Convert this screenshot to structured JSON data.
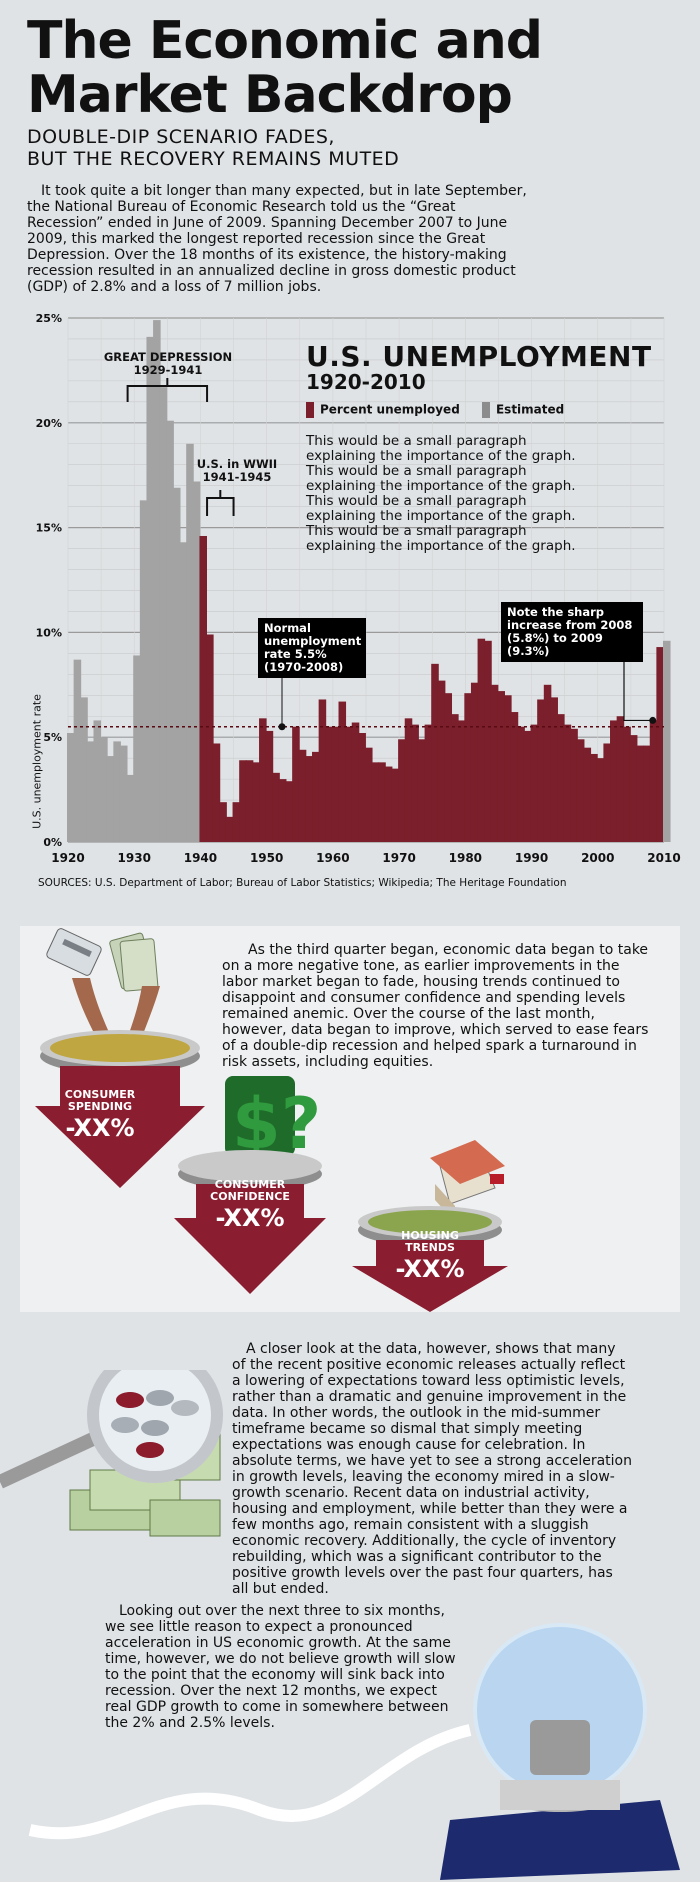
{
  "header": {
    "title": "The Economic and Market Backdrop",
    "subtitle_line1": "DOUBLE-DIP SCENARIO FADES,",
    "subtitle_line2": "BUT THE RECOVERY REMAINS MUTED",
    "intro": "It took quite a bit longer than many expected, but in late September, the National Bureau of Economic Research told us the “Great Recession” ended in June of 2009. Spanning December 2007 to June 2009, this marked the longest reported recession since the Great Depression. Over the 18 months of its existence, the history-making recession resulted in an annualized decline in gross domestic product (GDP) of 2.8% and a loss of 7 million jobs."
  },
  "chart": {
    "title": "U.S. UNEMPLOYMENT",
    "subtitle": "1920-2010",
    "legend_percent": "Percent unemployed",
    "legend_estimated": "Estimated",
    "note": "This would be a small paragraph explaining the importance of the graph. This would be a small paragraph explaining the importance of the graph. This would be a small paragraph explaining the importance of the graph. This would be a small paragraph explaining the importance of the graph.",
    "ann_depression_1": "GREAT DEPRESSION",
    "ann_depression_2": "1929-1941",
    "ann_ww2_1": "U.S. in WWII",
    "ann_ww2_2": "1941-1945",
    "callout_normal": "Normal unemployment rate 5.5% (1970-2008)",
    "callout_sharp": "Note the sharp increase from 2008 (5.8%) to 2009 (9.3%)",
    "sources": "SOURCES: U.S. Department of Labor; Bureau of Labor Statistics; Wikipedia; The Heritage Foundation",
    "colors": {
      "estimated": "#a3a3a3",
      "actual": "#7a1f2b",
      "average": "#5a0a12"
    }
  },
  "chart_data": {
    "type": "bar",
    "title": "U.S. UNEMPLOYMENT",
    "subtitle": "1920-2010",
    "xlabel": "",
    "ylabel": "U.S. unemployment rate",
    "ylim": [
      0,
      25
    ],
    "xlim": [
      1920,
      2010
    ],
    "yticks": [
      "0%",
      "5%",
      "10%",
      "15%",
      "20%",
      "25%"
    ],
    "xticks": [
      "1920",
      "1930",
      "1940",
      "1950",
      "1960",
      "1970",
      "1980",
      "1990",
      "2000",
      "2010"
    ],
    "average_line": 5.5,
    "series": [
      {
        "name": "Estimated",
        "x": [
          1920,
          1921,
          1922,
          1923,
          1924,
          1925,
          1926,
          1927,
          1928,
          1929,
          1930,
          1931,
          1932,
          1933,
          1934,
          1935,
          1936,
          1937,
          1938,
          1939
        ],
        "values": [
          5.2,
          8.7,
          6.9,
          4.8,
          5.8,
          5.0,
          4.1,
          4.8,
          4.6,
          3.2,
          8.9,
          16.3,
          24.1,
          24.9,
          21.7,
          20.1,
          16.9,
          14.3,
          19.0,
          17.2
        ]
      },
      {
        "name": "Percent unemployed",
        "x": [
          1940,
          1941,
          1942,
          1943,
          1944,
          1945,
          1946,
          1947,
          1948,
          1949,
          1950,
          1951,
          1952,
          1953,
          1954,
          1955,
          1956,
          1957,
          1958,
          1959,
          1960,
          1961,
          1962,
          1963,
          1964,
          1965,
          1966,
          1967,
          1968,
          1969,
          1970,
          1971,
          1972,
          1973,
          1974,
          1975,
          1976,
          1977,
          1978,
          1979,
          1980,
          1981,
          1982,
          1983,
          1984,
          1985,
          1986,
          1987,
          1988,
          1989,
          1990,
          1991,
          1992,
          1993,
          1994,
          1995,
          1996,
          1997,
          1998,
          1999,
          2000,
          2001,
          2002,
          2003,
          2004,
          2005,
          2006,
          2007,
          2008,
          2009
        ],
        "values": [
          14.6,
          9.9,
          4.7,
          1.9,
          1.2,
          1.9,
          3.9,
          3.9,
          3.8,
          5.9,
          5.3,
          3.3,
          3.0,
          2.9,
          5.5,
          4.4,
          4.1,
          4.3,
          6.8,
          5.5,
          5.5,
          6.7,
          5.5,
          5.7,
          5.2,
          4.5,
          3.8,
          3.8,
          3.6,
          3.5,
          4.9,
          5.9,
          5.6,
          4.9,
          5.6,
          8.5,
          7.7,
          7.1,
          6.1,
          5.8,
          7.1,
          7.6,
          9.7,
          9.6,
          7.5,
          7.2,
          7.0,
          6.2,
          5.5,
          5.3,
          5.6,
          6.8,
          7.5,
          6.9,
          6.1,
          5.6,
          5.4,
          4.9,
          4.5,
          4.2,
          4.0,
          4.7,
          5.8,
          6.0,
          5.5,
          5.1,
          4.6,
          4.6,
          5.8,
          9.3
        ]
      },
      {
        "name": "Estimated",
        "x": [
          2010
        ],
        "values": [
          9.6
        ]
      }
    ],
    "annotations": [
      "GREAT DEPRESSION 1929-1941",
      "U.S. in WWII 1941-1945",
      "Normal unemployment rate 5.5% (1970-2008)",
      "Note the sharp increase from 2008 (5.8%) to 2009 (9.3%)"
    ]
  },
  "section2": {
    "paragraph": "As the third quarter began, economic data began to take on a more negative tone, as earlier improvements in the labor market began to fade, housing trends continued to disappoint and consumer confidence and spending levels remained anemic. Over the course of the last month, however, data began to improve, which served to ease fears of a double-dip recession and helped spark a turnaround in risk assets, including equities.",
    "spending_label_1": "CONSUMER",
    "spending_label_2": "SPENDING",
    "spending_value": "-XX%",
    "confidence_label_1": "CONSUMER",
    "confidence_label_2": "CONFIDENCE",
    "confidence_value": "-XX%",
    "housing_label_1": "HOUSING",
    "housing_label_2": "TRENDS",
    "housing_value": "-XX%"
  },
  "section3": {
    "paragraph": "A closer look at the data, however, shows that many of the recent positive economic releases actually reflect a lowering of expectations toward less optimistic levels, rather than a dramatic and genuine improvement in the data. In other words, the outlook in the mid-summer timeframe became so dismal that simply meeting expectations was enough cause for celebration. In absolute terms, we have yet to see a strong acceleration in growth levels, leaving the economy mired in a slow-growth scenario. Recent data on industrial activity, housing and employment, while better than they were a few months ago, remain consistent with a sluggish economic recovery. Additionally, the cycle of inventory rebuilding, which was a significant contributor to the positive growth levels over the past four quarters, has all but ended."
  },
  "section4": {
    "paragraph": "Looking out over the next three to six months, we see little reason to expect a pronounced acceleration in US economic growth. At the same time, however, we do not believe growth will slow to the point that the economy will sink back into recession. Over the next 12 months, we expect real GDP growth to come in somewhere between the 2% and 2.5% levels."
  },
  "icons": [
    "credit-card-icon",
    "cash-icon",
    "dollar-question-icon",
    "house-icon",
    "magnifying-glass-icon",
    "coins-icon",
    "money-stack-icon",
    "crystal-ball-icon",
    "ticker-tape-icon"
  ]
}
